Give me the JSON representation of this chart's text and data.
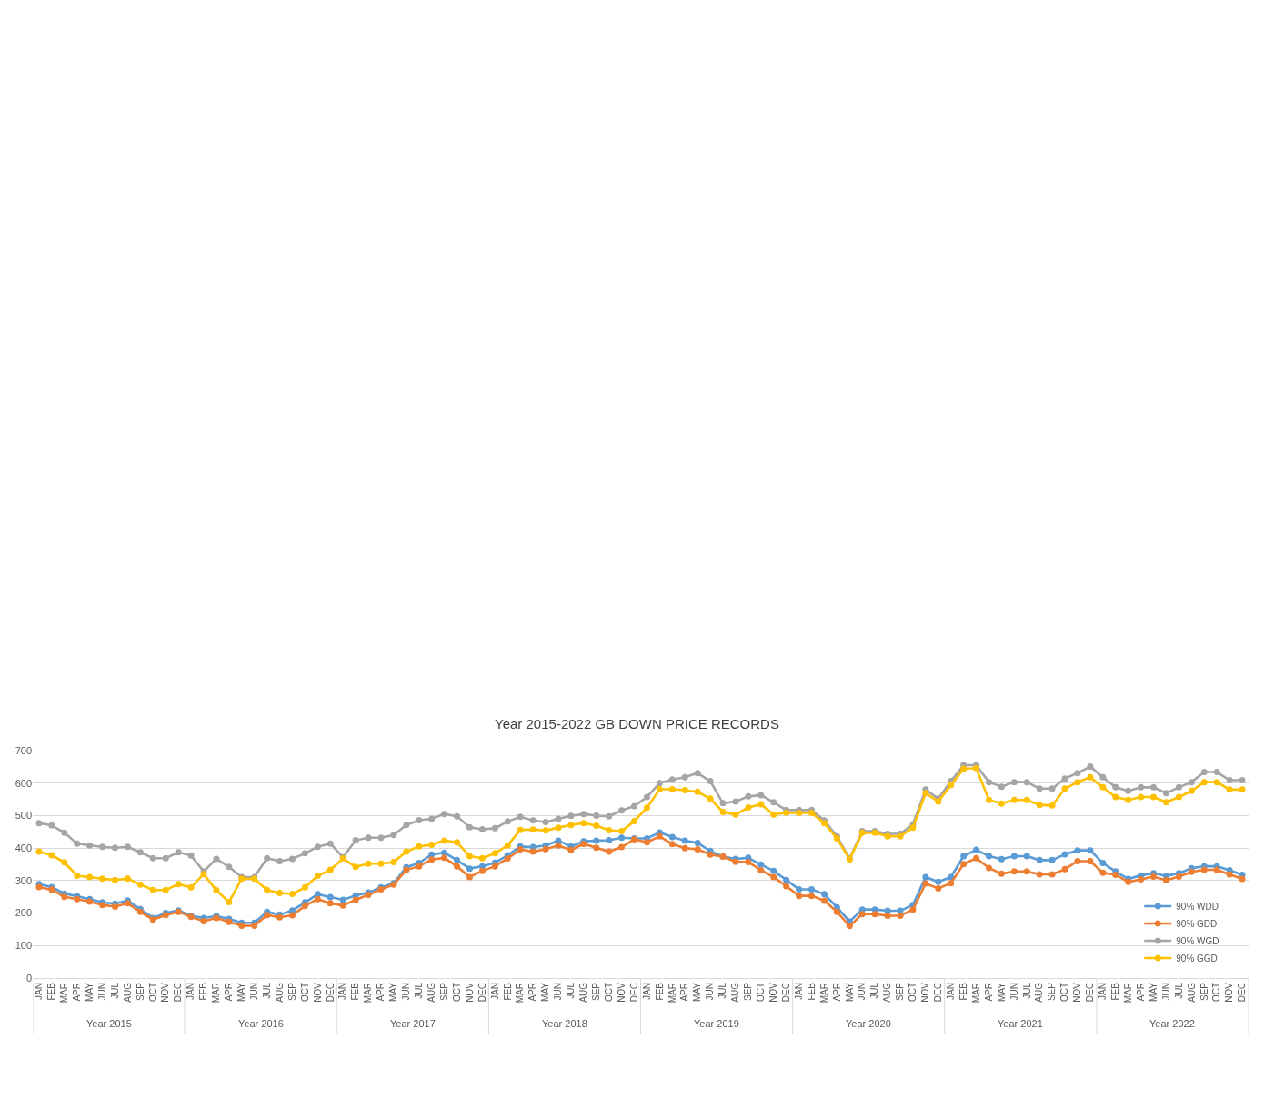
{
  "chart_data": {
    "type": "line",
    "title": "Year 2015-2022 GB DOWN PRICE RECORDS",
    "categories": [
      "JAN",
      "FEB",
      "MAR",
      "APR",
      "MAY",
      "JUN",
      "JUL",
      "AUG",
      "SEP",
      "OCT",
      "NOV",
      "DEC",
      "JAN",
      "FEB",
      "MAR",
      "APR",
      "MAY",
      "JUN",
      "JUL",
      "AUG",
      "SEP",
      "OCT",
      "NOV",
      "DEC",
      "JAN",
      "FEB",
      "MAR",
      "APR",
      "MAY",
      "JUN",
      "JUL",
      "AUG",
      "SEP",
      "OCT",
      "NOV",
      "DEC",
      "JAN",
      "FEB",
      "MAR",
      "APR",
      "MAY",
      "JUN",
      "JUL",
      "AUG",
      "SEP",
      "OCT",
      "NOV",
      "DEC",
      "JAN",
      "FEB",
      "MAR",
      "APR",
      "MAY",
      "JUN",
      "JUL",
      "AUG",
      "SEP",
      "OCT",
      "NOV",
      "DEC",
      "JAN",
      "FEB",
      "MAR",
      "APR",
      "MAY",
      "JUN",
      "JUL",
      "AUG",
      "SEP",
      "OCT",
      "NOV",
      "DEC",
      "JAN",
      "FEB",
      "MAR",
      "APR",
      "MAY",
      "JUN",
      "JUL",
      "AUG",
      "SEP",
      "OCT",
      "NOV",
      "DEC",
      "JAN",
      "FEB",
      "MAR",
      "APR",
      "MAY",
      "JUN",
      "JUL",
      "AUG",
      "SEP",
      "OCT",
      "NOV",
      "DEC"
    ],
    "series": [
      {
        "name": "90% WDD",
        "color": "#5b9bd5",
        "values": [
          289,
          280,
          260,
          252,
          243,
          233,
          229,
          239,
          212,
          185,
          200,
          208,
          192,
          185,
          191,
          182,
          170,
          170,
          204,
          195,
          208,
          233,
          258,
          249,
          241,
          254,
          263,
          279,
          292,
          341,
          354,
          380,
          386,
          363,
          337,
          344,
          355,
          378,
          405,
          403,
          408,
          423,
          405,
          421,
          423,
          424,
          432,
          430,
          430,
          448,
          434,
          423,
          416,
          391,
          374,
          367,
          370,
          349,
          330,
          302,
          273,
          273,
          258,
          218,
          174,
          211,
          211,
          207,
          207,
          225,
          311,
          296,
          311,
          375,
          395,
          375,
          366,
          375,
          375,
          363,
          363,
          381,
          393,
          393,
          354,
          328,
          305,
          316,
          323,
          314,
          323,
          338,
          344,
          344,
          332,
          318
        ]
      },
      {
        "name": "90% GDD",
        "color": "#ed7d31",
        "values": [
          280,
          272,
          250,
          243,
          235,
          225,
          220,
          230,
          204,
          180,
          194,
          204,
          188,
          175,
          185,
          173,
          161,
          161,
          194,
          187,
          193,
          222,
          243,
          230,
          223,
          241,
          256,
          273,
          288,
          333,
          344,
          365,
          370,
          344,
          311,
          330,
          344,
          368,
          396,
          389,
          397,
          408,
          394,
          413,
          401,
          389,
          403,
          427,
          418,
          436,
          412,
          400,
          396,
          380,
          374,
          358,
          357,
          332,
          311,
          283,
          253,
          253,
          238,
          204,
          160,
          197,
          197,
          192,
          192,
          211,
          291,
          276,
          292,
          351,
          369,
          339,
          321,
          328,
          328,
          319,
          319,
          335,
          360,
          360,
          324,
          318,
          296,
          304,
          312,
          301,
          312,
          327,
          333,
          333,
          319,
          305
        ]
      },
      {
        "name": "90% WGD",
        "color": "#a5a5a5",
        "values": [
          477,
          470,
          447,
          414,
          408,
          404,
          401,
          404,
          387,
          369,
          369,
          387,
          377,
          328,
          367,
          342,
          311,
          311,
          369,
          360,
          367,
          384,
          404,
          414,
          372,
          424,
          432,
          432,
          440,
          471,
          486,
          490,
          505,
          498,
          464,
          458,
          461,
          482,
          496,
          485,
          480,
          490,
          499,
          505,
          500,
          498,
          516,
          529,
          557,
          600,
          611,
          618,
          631,
          606,
          538,
          543,
          559,
          563,
          541,
          517,
          517,
          517,
          485,
          436,
          368,
          452,
          452,
          444,
          444,
          473,
          580,
          552,
          606,
          655,
          655,
          603,
          589,
          603,
          603,
          583,
          583,
          614,
          631,
          651,
          618,
          587,
          576,
          587,
          587,
          569,
          587,
          603,
          634,
          634,
          609,
          609
        ]
      },
      {
        "name": "90% GGD",
        "color": "#ffc000",
        "values": [
          389,
          378,
          356,
          315,
          311,
          306,
          302,
          306,
          288,
          271,
          271,
          289,
          279,
          320,
          270,
          234,
          306,
          306,
          271,
          262,
          259,
          279,
          315,
          333,
          368,
          342,
          352,
          352,
          357,
          389,
          405,
          410,
          423,
          418,
          375,
          369,
          384,
          408,
          456,
          457,
          454,
          463,
          471,
          477,
          469,
          455,
          452,
          483,
          524,
          581,
          581,
          578,
          573,
          552,
          511,
          503,
          525,
          535,
          503,
          509,
          508,
          508,
          477,
          430,
          365,
          447,
          447,
          436,
          436,
          463,
          569,
          543,
          594,
          644,
          646,
          548,
          537,
          548,
          548,
          533,
          531,
          583,
          603,
          618,
          587,
          557,
          548,
          557,
          557,
          541,
          557,
          576,
          603,
          603,
          580,
          580
        ]
      }
    ],
    "annotations": [
      "Year 2015",
      "Year 2016",
      "Year 2017",
      "Year 2018",
      "Year 2019",
      "Year 2020",
      "Year 2021",
      "Year 2022"
    ],
    "ylim": [
      0,
      700
    ],
    "yticks": [
      0,
      100,
      200,
      300,
      400,
      500,
      600,
      700
    ],
    "grid": "y",
    "legend": "bottom right",
    "marker": "circle",
    "line_style": "solid"
  }
}
